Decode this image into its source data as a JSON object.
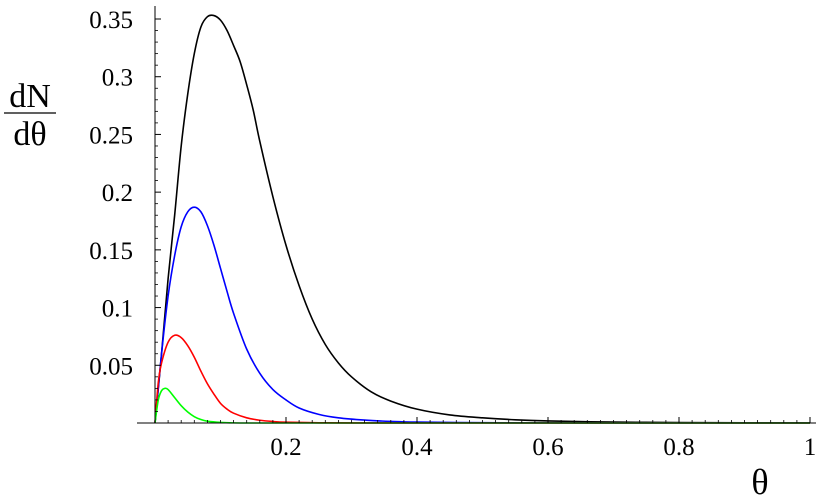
{
  "chart_data": {
    "type": "line",
    "title": "",
    "xlabel": "θ",
    "ylabel": {
      "numerator": "dN",
      "denominator": "dθ"
    },
    "xlim": [
      0,
      1
    ],
    "ylim": [
      0,
      0.35
    ],
    "grid": false,
    "legend": "none",
    "x_ticks": [
      {
        "value": 0.2,
        "label": "0.2"
      },
      {
        "value": 0.4,
        "label": "0.4"
      },
      {
        "value": 0.6,
        "label": "0.6"
      },
      {
        "value": 0.8,
        "label": "0.8"
      },
      {
        "value": 1.0,
        "label": "1"
      }
    ],
    "y_ticks": [
      {
        "value": 0.05,
        "label": "0.05"
      },
      {
        "value": 0.1,
        "label": "0.1"
      },
      {
        "value": 0.15,
        "label": "0.15"
      },
      {
        "value": 0.2,
        "label": "0.2"
      },
      {
        "value": 0.25,
        "label": "0.25"
      },
      {
        "value": 0.3,
        "label": "0.3"
      },
      {
        "value": 0.35,
        "label": "0.35"
      }
    ],
    "series": [
      {
        "color": "#000000",
        "x": [
          0,
          0.01,
          0.02,
          0.03,
          0.04,
          0.05,
          0.06,
          0.07,
          0.08,
          0.09,
          0.1,
          0.11,
          0.12,
          0.13,
          0.14,
          0.15,
          0.16,
          0.18,
          0.2,
          0.22,
          0.24,
          0.26,
          0.28,
          0.3,
          0.33,
          0.36,
          0.4,
          0.45,
          0.5,
          0.55,
          0.6,
          0.7,
          0.8,
          0.9,
          1.0
        ],
        "y": [
          0,
          0.06,
          0.125,
          0.18,
          0.24,
          0.285,
          0.32,
          0.343,
          0.352,
          0.353,
          0.349,
          0.34,
          0.327,
          0.313,
          0.293,
          0.271,
          0.244,
          0.196,
          0.154,
          0.119,
          0.09,
          0.068,
          0.052,
          0.04,
          0.027,
          0.019,
          0.012,
          0.007,
          0.0045,
          0.0028,
          0.0018,
          0.0008,
          0.0004,
          0.0002,
          0.0001
        ]
      },
      {
        "color": "#0000ff",
        "x": [
          0,
          0.01,
          0.02,
          0.03,
          0.04,
          0.05,
          0.06,
          0.07,
          0.08,
          0.09,
          0.1,
          0.11,
          0.12,
          0.14,
          0.16,
          0.18,
          0.2,
          0.22,
          0.25,
          0.28,
          0.32,
          0.36,
          0.4,
          0.5,
          0.6,
          0.8,
          1.0
        ],
        "y": [
          0,
          0.06,
          0.11,
          0.145,
          0.17,
          0.183,
          0.187,
          0.183,
          0.171,
          0.154,
          0.134,
          0.114,
          0.095,
          0.064,
          0.043,
          0.029,
          0.02,
          0.013,
          0.0075,
          0.0045,
          0.0025,
          0.0014,
          0.0008,
          0.0003,
          0.0001,
          5e-05,
          2e-05
        ]
      },
      {
        "color": "#ff0000",
        "x": [
          0,
          0.005,
          0.01,
          0.02,
          0.03,
          0.04,
          0.05,
          0.06,
          0.07,
          0.08,
          0.09,
          0.1,
          0.11,
          0.12,
          0.14,
          0.16,
          0.18,
          0.2,
          0.25,
          0.3,
          0.4,
          0.6,
          1.0
        ],
        "y": [
          0,
          0.035,
          0.052,
          0.07,
          0.076,
          0.074,
          0.067,
          0.057,
          0.045,
          0.034,
          0.025,
          0.017,
          0.012,
          0.0085,
          0.0045,
          0.0024,
          0.0013,
          0.0007,
          0.0002,
          5e-05,
          0,
          0,
          0
        ]
      },
      {
        "color": "#00ff00",
        "x": [
          0,
          0.005,
          0.01,
          0.015,
          0.02,
          0.03,
          0.04,
          0.05,
          0.06,
          0.07,
          0.08,
          0.1,
          0.12,
          0.15,
          0.2,
          0.4,
          1.0
        ],
        "y": [
          0,
          0.02,
          0.028,
          0.03,
          0.029,
          0.022,
          0.015,
          0.0095,
          0.0055,
          0.003,
          0.0016,
          0.0005,
          0.0001,
          0,
          0,
          0,
          0
        ]
      }
    ]
  }
}
